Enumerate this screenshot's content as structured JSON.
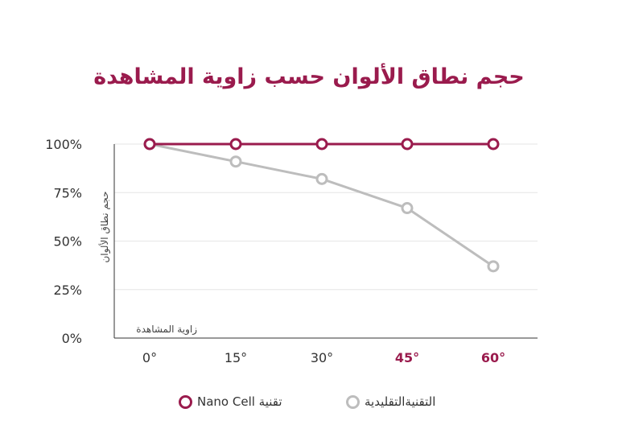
{
  "chart_data": {
    "type": "line",
    "title": "حجم نطاق الألوان حسب زاوية المشاهدة",
    "xlabel": "زاوية المشاهدة",
    "ylabel": "حجم نطاق الألوان",
    "categories": [
      "0°",
      "15°",
      "30°",
      "45°",
      "60°"
    ],
    "highlighted_categories": [
      "45°",
      "60°"
    ],
    "y_ticks": [
      "100%",
      "75%",
      "50%",
      "25%",
      "0%"
    ],
    "ylim": [
      0,
      100
    ],
    "grid": true,
    "series": [
      {
        "name": "تقنية Nano Cell",
        "values": [
          100,
          100,
          100,
          100,
          100
        ],
        "color": "#9a1b4d"
      },
      {
        "name": "التقنيةالتقليدية",
        "values": [
          100,
          91,
          82,
          67,
          37
        ],
        "color": "#bdbdbd"
      }
    ],
    "legend_position": "bottom-center"
  }
}
